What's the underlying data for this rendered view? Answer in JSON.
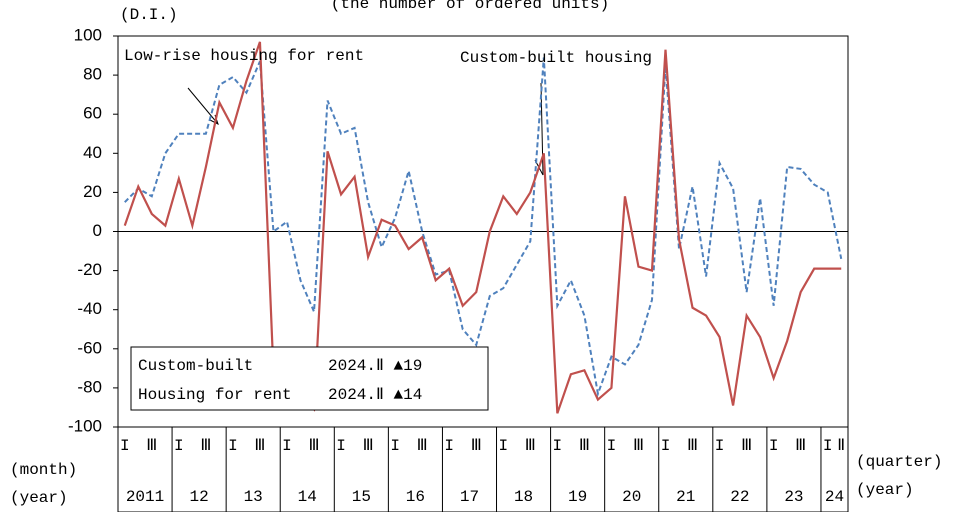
{
  "chart_data": {
    "type": "line",
    "title": "(the number of ordered units)",
    "y_label": "(D.I.)",
    "x_label_quarter_left": "(month)",
    "x_label_year_left": "(year)",
    "x_label_quarter_right": "(quarter)",
    "x_label_year_right": "(year)",
    "categories": [
      "I",
      null,
      "Ⅲ",
      null,
      "I",
      null,
      "Ⅲ",
      null,
      "I",
      null,
      "Ⅲ",
      null,
      "I",
      null,
      "Ⅲ",
      null,
      "I",
      null,
      "Ⅲ",
      null,
      "I",
      null,
      "Ⅲ",
      null,
      "I",
      null,
      "Ⅲ",
      null,
      "I",
      null,
      "Ⅲ",
      null,
      "I",
      null,
      "Ⅲ",
      null,
      "I",
      null,
      "Ⅲ",
      null,
      "I",
      null,
      "Ⅲ",
      null,
      "I",
      null,
      "Ⅲ",
      null,
      "I",
      null,
      "Ⅲ",
      null,
      "I",
      "Ⅱ"
    ],
    "years": [
      "2011",
      "12",
      "13",
      "14",
      "15",
      "16",
      "17",
      "18",
      "19",
      "20",
      "21",
      "22",
      "23",
      "24"
    ],
    "series": [
      {
        "name": "Custom-built housing",
        "color": "#c0504d",
        "dash": false,
        "values": [
          3,
          23,
          9,
          3,
          27,
          3,
          33,
          66,
          53,
          77,
          97,
          -72,
          -82,
          -85,
          -91,
          41,
          19,
          28,
          -13,
          6,
          3,
          -9,
          -3,
          -25,
          -19,
          -38,
          -31,
          0,
          18,
          9,
          20,
          40,
          -93,
          -73,
          -71,
          -86,
          -80,
          18,
          -18,
          -20,
          93,
          -4,
          -39,
          -43,
          -54,
          -89,
          -43,
          -54,
          -75,
          -56,
          -31,
          -19,
          -19,
          -19
        ]
      },
      {
        "name": "Low-rise housing for rent",
        "color": "#4f81bd",
        "dash": true,
        "values": [
          15,
          22,
          18,
          40,
          50,
          50,
          50,
          75,
          79,
          71,
          87,
          0,
          5,
          -25,
          -41,
          67,
          50,
          53,
          15,
          -8,
          7,
          31,
          0,
          -22,
          -20,
          -50,
          -58,
          -33,
          -29,
          -17,
          -5,
          89,
          -38,
          -25,
          -43,
          -83,
          -64,
          -68,
          -58,
          -35,
          85,
          -9,
          23,
          -23,
          35,
          22,
          -31,
          17,
          -38,
          33,
          32,
          24,
          20,
          -14
        ]
      }
    ],
    "legend_box": {
      "rows": [
        [
          "Custom-built",
          "2024.Ⅱ ▲19"
        ],
        [
          "Housing for rent",
          "2024.Ⅱ ▲14"
        ]
      ]
    },
    "ylim": [
      -100,
      100
    ],
    "yticks": [
      -100,
      -80,
      -60,
      -40,
      -20,
      0,
      20,
      40,
      60,
      80,
      100
    ],
    "zero_line": true
  }
}
